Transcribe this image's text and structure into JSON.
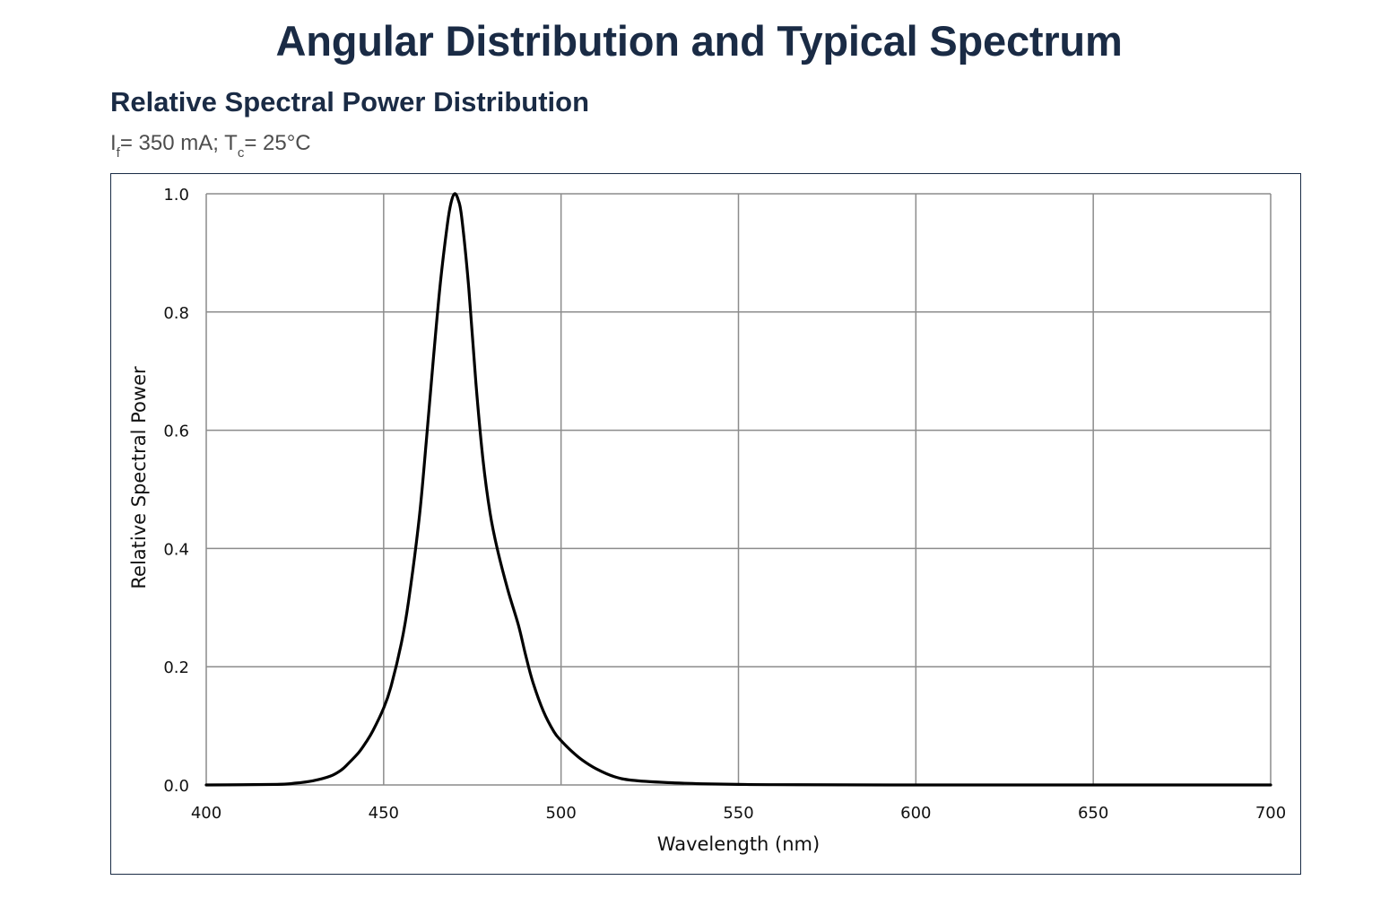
{
  "page": {
    "title": "Angular Distribution and Typical Spectrum",
    "section_title": "Relative Spectral Power Distribution",
    "conditions": {
      "if_symbol": "I",
      "if_sub": "f",
      "if_value": "= 350 mA; ",
      "tc_symbol": "T",
      "tc_sub": "c",
      "tc_value": "= 25°C"
    }
  },
  "colors": {
    "title": "#1a2b45",
    "grid": "#8c8c8c",
    "curve": "#000000",
    "frame_border": "#1a2b45"
  },
  "chart_data": {
    "type": "line",
    "title": "",
    "xlabel": "Wavelength (nm)",
    "ylabel": "Relative Spectral Power",
    "xlim": [
      400,
      700
    ],
    "ylim": [
      0,
      1.0
    ],
    "x_ticks": [
      400,
      450,
      500,
      550,
      600,
      650,
      700
    ],
    "y_ticks": [
      0.0,
      0.2,
      0.4,
      0.6,
      0.8,
      1.0
    ],
    "x_tick_labels": [
      "400",
      "450",
      "500",
      "550",
      "600",
      "650",
      "700"
    ],
    "y_tick_labels": [
      "0.0",
      "0.2",
      "0.4",
      "0.6",
      "0.8",
      "1.0"
    ],
    "grid": true,
    "legend": "none",
    "series": [
      {
        "x": [
          400,
          420,
          425,
          430,
          435,
          438,
          440,
          443,
          445,
          447,
          450,
          452,
          455,
          457,
          460,
          462,
          464,
          466,
          468,
          469,
          470,
          471,
          472,
          474,
          476,
          478,
          480,
          482,
          485,
          488,
          490,
          492,
          495,
          498,
          500,
          503,
          506,
          510,
          515,
          520,
          530,
          540,
          550,
          560,
          600,
          650,
          700
        ],
        "y": [
          0.0,
          0.001,
          0.003,
          0.007,
          0.015,
          0.025,
          0.036,
          0.055,
          0.072,
          0.092,
          0.13,
          0.165,
          0.24,
          0.31,
          0.45,
          0.58,
          0.72,
          0.85,
          0.95,
          0.985,
          1.0,
          0.99,
          0.96,
          0.84,
          0.68,
          0.55,
          0.46,
          0.4,
          0.33,
          0.27,
          0.22,
          0.175,
          0.125,
          0.09,
          0.075,
          0.057,
          0.042,
          0.027,
          0.014,
          0.008,
          0.004,
          0.002,
          0.001,
          0.0005,
          0.0,
          0.0,
          0.0
        ]
      }
    ]
  }
}
